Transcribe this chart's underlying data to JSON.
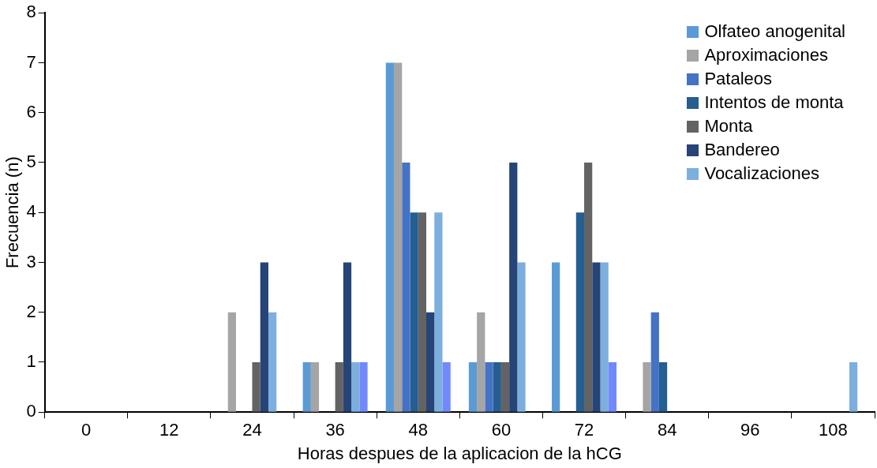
{
  "chart_data": {
    "type": "bar",
    "xlabel": "Horas despues de la aplicacion de la hCG",
    "ylabel": "Frecuencia (n)",
    "categories": [
      "0",
      "12",
      "24",
      "36",
      "48",
      "60",
      "72",
      "84",
      "96",
      "108"
    ],
    "series": [
      {
        "name": "Olfateo anogenital",
        "color": "#5b9bd5",
        "values": [
          0,
          0,
          0,
          1,
          7,
          1,
          3,
          0,
          0,
          0
        ]
      },
      {
        "name": "Aproximaciones",
        "color": "#a5a5a5",
        "values": [
          0,
          0,
          2,
          1,
          7,
          2,
          0,
          1,
          0,
          0
        ]
      },
      {
        "name": "Pataleos",
        "color": "#4472c4",
        "values": [
          0,
          0,
          0,
          0,
          5,
          1,
          0,
          2,
          0,
          0
        ]
      },
      {
        "name": "Intentos de monta",
        "color": "#255e91",
        "values": [
          0,
          0,
          0,
          0,
          4,
          1,
          4,
          1,
          0,
          0
        ]
      },
      {
        "name": "Monta",
        "color": "#636363",
        "values": [
          0,
          0,
          1,
          1,
          4,
          1,
          5,
          0,
          0,
          0
        ]
      },
      {
        "name": "Bandereo",
        "color": "#264478",
        "values": [
          0,
          0,
          3,
          3,
          2,
          5,
          3,
          0,
          0,
          0
        ]
      },
      {
        "name": "Vocalizaciones",
        "color": "#7cafdd",
        "values": [
          0,
          0,
          2,
          1,
          4,
          3,
          3,
          0,
          0,
          1
        ]
      },
      {
        "color": "#7189fb",
        "values": [
          0,
          0,
          0,
          1,
          1,
          0,
          1,
          0,
          0,
          0
        ]
      }
    ],
    "ylim": [
      0,
      8
    ],
    "yticks": [
      0,
      1,
      2,
      3,
      4,
      5,
      6,
      7,
      8
    ],
    "grid": false,
    "legend": "top right"
  }
}
